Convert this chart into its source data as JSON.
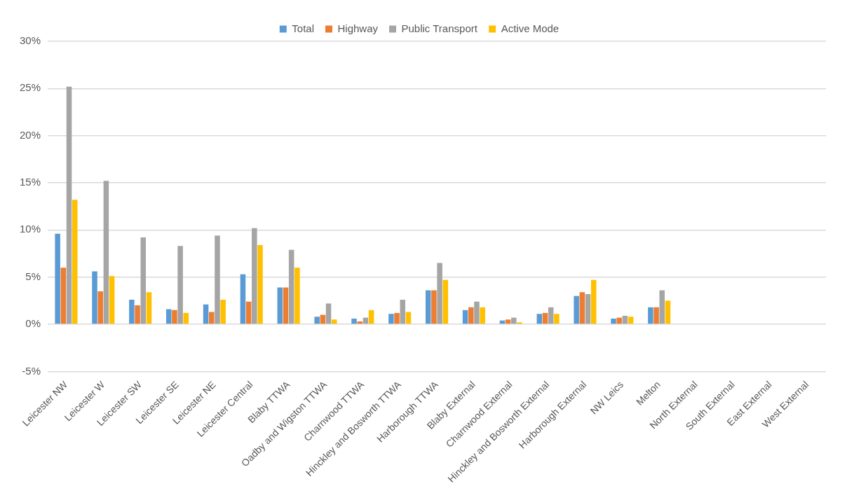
{
  "chart_data": {
    "type": "bar",
    "categories": [
      "Leicester NW",
      "Leicester W",
      "Leicester SW",
      "Leicester SE",
      "Leicester NE",
      "Leicester Central",
      "Blaby TTWA",
      "Oadby and Wigston TTWA",
      "Charnwood TTWA",
      "Hinckley and Bosworth TTWA",
      "Harborough TTWA",
      "Blaby External",
      "Charnwood External",
      "Hinckley and Bosworth External",
      "Harborough External",
      "NW Leics",
      "Melton",
      "North External",
      "South External",
      "East External",
      "West External"
    ],
    "series": [
      {
        "name": "Total",
        "color": "#5b9bd5",
        "values": [
          9.6,
          5.6,
          2.6,
          1.6,
          2.1,
          5.3,
          3.9,
          0.8,
          0.6,
          1.1,
          3.6,
          1.5,
          0.4,
          1.1,
          3.0,
          0.6,
          1.8,
          0,
          0,
          0,
          0
        ]
      },
      {
        "name": "Highway",
        "color": "#ed7d31",
        "values": [
          6.0,
          3.5,
          2.0,
          1.5,
          1.3,
          2.4,
          3.9,
          1.0,
          0.3,
          1.2,
          3.6,
          1.8,
          0.5,
          1.2,
          3.4,
          0.7,
          1.8,
          0,
          0,
          0,
          0
        ]
      },
      {
        "name": "Public Transport",
        "color": "#a5a5a5",
        "values": [
          25.2,
          15.2,
          9.2,
          8.3,
          9.4,
          10.2,
          7.9,
          2.2,
          0.7,
          2.6,
          6.5,
          2.4,
          0.7,
          1.8,
          3.2,
          0.9,
          3.6,
          0,
          0,
          0,
          0
        ]
      },
      {
        "name": "Active Mode",
        "color": "#ffc000",
        "values": [
          13.2,
          5.1,
          3.4,
          1.2,
          2.6,
          8.4,
          6.0,
          0.5,
          1.5,
          1.3,
          4.7,
          1.8,
          0.2,
          1.1,
          4.7,
          0.8,
          2.5,
          0,
          0,
          0,
          0
        ]
      }
    ],
    "ylim": [
      -5,
      30
    ],
    "yticks": [
      {
        "value": -5,
        "label": "-5%"
      },
      {
        "value": 0,
        "label": "0%"
      },
      {
        "value": 5,
        "label": "5%"
      },
      {
        "value": 10,
        "label": "10%"
      },
      {
        "value": 15,
        "label": "15%"
      },
      {
        "value": 20,
        "label": "20%"
      },
      {
        "value": 25,
        "label": "25%"
      },
      {
        "value": 30,
        "label": "30%"
      }
    ],
    "grid": "y",
    "legend": "top"
  }
}
